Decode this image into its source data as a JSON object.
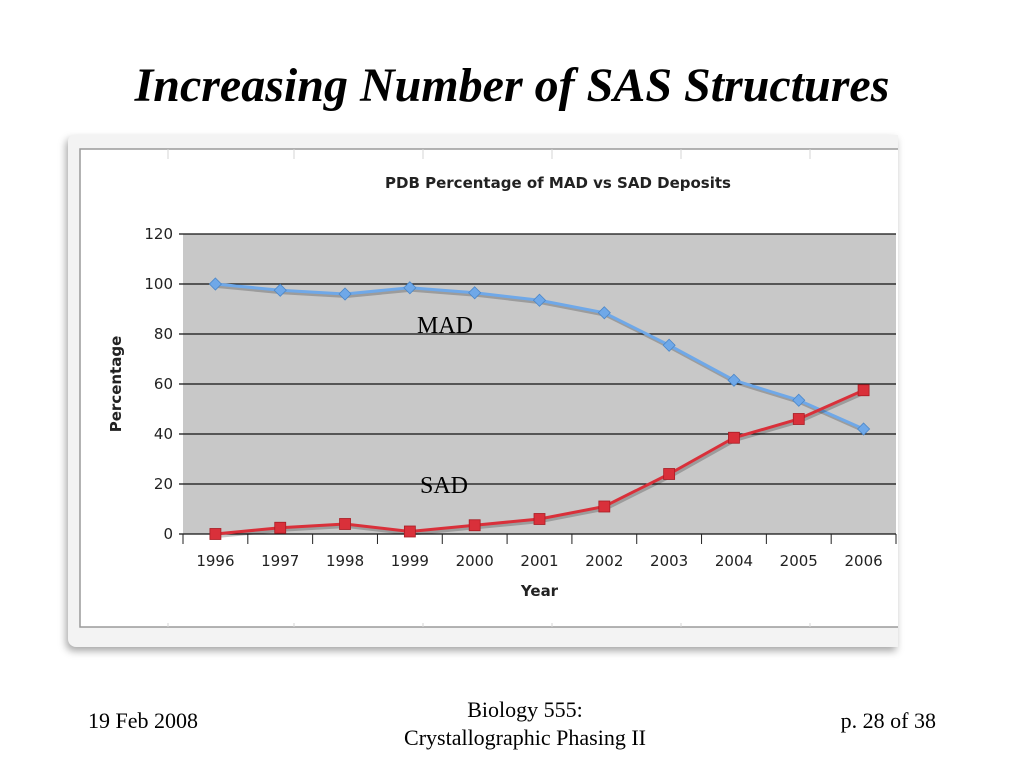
{
  "slide": {
    "title": "Increasing Number of  SAS Structures",
    "footer": {
      "date": "19 Feb 2008",
      "course_line1": "Biology 555:",
      "course_line2": "Crystallographic Phasing II",
      "page": "p. 28 of 38"
    }
  },
  "chart_data": {
    "type": "line",
    "title": "PDB Percentage of MAD vs SAD Deposits",
    "xlabel": "Year",
    "ylabel": "Percentage",
    "x": [
      "1996",
      "1997",
      "1998",
      "1999",
      "2000",
      "2001",
      "2002",
      "2003",
      "2004",
      "2005",
      "2006"
    ],
    "ylim": [
      0,
      120
    ],
    "yticks": [
      0,
      20,
      40,
      60,
      80,
      100,
      120
    ],
    "grid": true,
    "series": [
      {
        "name": "MAD",
        "marker": "diamond",
        "color": "#6fa8e8",
        "values": [
          100,
          97.5,
          96,
          98.5,
          96.5,
          93.5,
          88.5,
          75.5,
          61.5,
          53.5,
          42
        ]
      },
      {
        "name": "SAD",
        "marker": "square",
        "color": "#d9303a",
        "values": [
          0,
          2.5,
          4,
          1,
          3.5,
          6,
          11,
          24,
          38.5,
          46,
          57.5
        ]
      }
    ],
    "plot_background": "#c8c8c8"
  }
}
